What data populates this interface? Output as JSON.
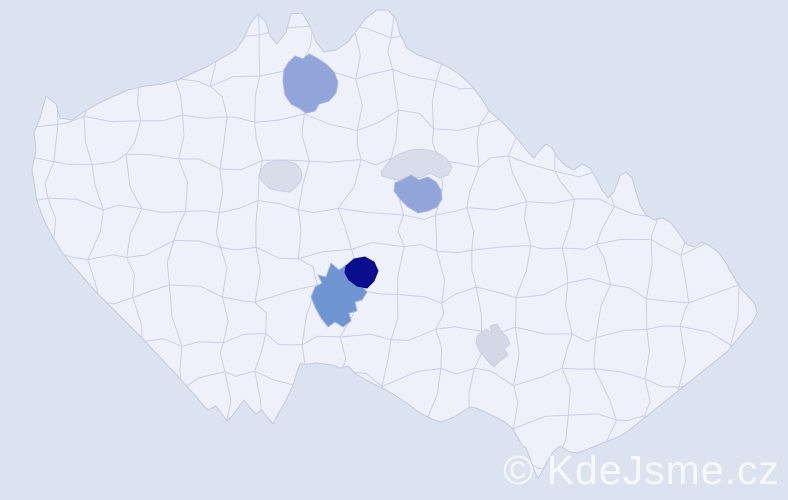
{
  "watermark": {
    "text": "© KdeJsme.cz"
  },
  "map": {
    "type": "choropleth",
    "region": "Czech Republic districts (okresy)",
    "colors": {
      "background": "#dbe3f0",
      "land": "#eef1f9",
      "border": "#c9cfe7",
      "outline": "#c2c9e2",
      "highlight_darkest": "#0a0d8e",
      "highlight_strong": "#6f96d3",
      "highlight_medium": "#92a5da",
      "highlight_light": "#d9dce9",
      "highlight_faint": "#d4d8e6",
      "highlight_border": "#aab4da",
      "watermark_text": "rgba(255,255,255,0.75)"
    },
    "highlighted_districts": [
      {
        "id": "north-bohemia",
        "shade": "medium",
        "color": "#92a5da"
      },
      {
        "id": "central-bohemia-west",
        "shade": "light",
        "color": "#d9dce9"
      },
      {
        "id": "east-bohemia-upper",
        "shade": "light",
        "color": "#d9dce9"
      },
      {
        "id": "east-bohemia-lower",
        "shade": "medium",
        "color": "#92a5da"
      },
      {
        "id": "highlands-north",
        "shade": "darkest",
        "color": "#0a0d8e"
      },
      {
        "id": "highlands-center",
        "shade": "strong",
        "color": "#6f96d3"
      },
      {
        "id": "south-moravia-city",
        "shade": "faint",
        "color": "#d4d8e6"
      }
    ]
  }
}
